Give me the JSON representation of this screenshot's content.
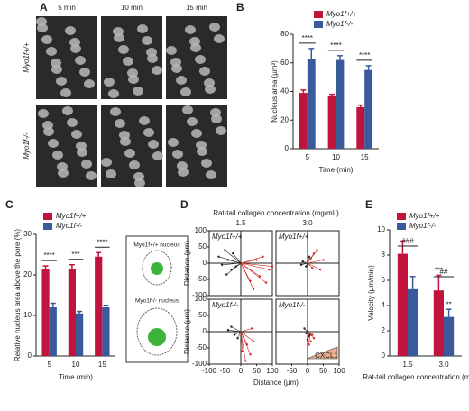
{
  "panel_labels": [
    "A",
    "B",
    "C",
    "D",
    "E"
  ],
  "panel_a": {
    "columns": [
      "5 min",
      "10 min",
      "15 min"
    ],
    "rows": [
      "Myo1f+/+",
      "Myo1f-/-"
    ]
  },
  "panel_c_diagram": {
    "labels": [
      "Myo1f+/+ nucleus",
      "Myo1f-/- nucleus"
    ]
  },
  "chart_data": [
    {
      "type": "bar",
      "categories": [
        "5",
        "10",
        "15"
      ],
      "xlabel": "Time (min)",
      "ylabel": "Nucleus area (µm²)",
      "ylim": [
        0,
        80
      ],
      "yticks": [
        0,
        20,
        40,
        60,
        80
      ],
      "series": [
        {
          "name": "Myo1f+/+",
          "color": "#c0143c",
          "values": [
            39,
            37,
            29
          ],
          "errors": [
            2,
            1,
            1.5
          ]
        },
        {
          "name": "Myo1f-/-",
          "color": "#3a5a9c",
          "values": [
            63,
            62,
            55
          ],
          "errors": [
            7,
            3,
            3
          ]
        }
      ],
      "significance": [
        "****",
        "****",
        "****"
      ]
    },
    {
      "type": "bar",
      "categories": [
        "5",
        "10",
        "15"
      ],
      "xlabel": "Time (min)",
      "ylabel": "Relative nucleus area above the pore (%)",
      "ylim": [
        0,
        30
      ],
      "yticks": [
        0,
        10,
        20,
        30
      ],
      "series": [
        {
          "name": "Myo1f+/+",
          "color": "#c0143c",
          "values": [
            21.5,
            21.5,
            24.5
          ],
          "errors": [
            0.7,
            1,
            1
          ]
        },
        {
          "name": "Myo1f-/-",
          "color": "#3a5a9c",
          "values": [
            12,
            10.5,
            12
          ],
          "errors": [
            1,
            0.5,
            0.5
          ]
        }
      ],
      "significance": [
        "****",
        "***",
        "****"
      ]
    },
    {
      "type": "tracks",
      "title": "Rat-tail collagen concentration (mg/mL)",
      "column_labels": [
        "1.5",
        "3.0"
      ],
      "row_labels": [
        "Myo1f+/+",
        "Myo1f-/-"
      ],
      "xlabel": "Distance (µm)",
      "ylabel": "Distance (µm)",
      "xlim": [
        -100,
        100
      ],
      "ylim": [
        -100,
        100
      ],
      "xticks": [
        -100,
        -50,
        0,
        50,
        100
      ],
      "yticks": [
        -100,
        -50,
        0,
        50,
        100
      ],
      "annotation": "CXCL1",
      "panels": [
        {
          "series": [
            {
              "color": "#222222",
              "x": [
                -40,
                -60,
                -25,
                -70,
                -30,
                -50,
                -15,
                -45
              ],
              "y": [
                10,
                -5,
                30,
                20,
                -20,
                40,
                -10,
                -35
              ]
            },
            {
              "color": "#d0281e",
              "x": [
                60,
                80,
                40,
                70,
                90,
                30,
                50,
                100
              ],
              "y": [
                -40,
                -60,
                -80,
                20,
                -20,
                -55,
                10,
                -10
              ]
            }
          ]
        },
        {
          "series": [
            {
              "color": "#222222",
              "x": [
                -15,
                -5,
                10,
                -20,
                5
              ],
              "y": [
                5,
                -10,
                15,
                -5,
                20
              ]
            },
            {
              "color": "#d0281e",
              "x": [
                30,
                40,
                20,
                50,
                15
              ],
              "y": [
                40,
                -20,
                30,
                10,
                -15
              ]
            }
          ]
        },
        {
          "series": [
            {
              "color": "#222222",
              "x": [
                -40,
                -20,
                -30,
                10,
                -10
              ],
              "y": [
                5,
                -10,
                15,
                -5,
                -20
              ]
            },
            {
              "color": "#d0281e",
              "x": [
                20,
                30,
                15,
                40,
                35,
                5
              ],
              "y": [
                -40,
                -70,
                -90,
                -30,
                10,
                -60
              ]
            }
          ]
        },
        {
          "series": [
            {
              "color": "#222222",
              "x": [
                -5,
                5,
                -10,
                8,
                0
              ],
              "y": [
                -5,
                -15,
                10,
                -10,
                -25
              ]
            },
            {
              "color": "#d0281e",
              "x": [
                10,
                20,
                5,
                15
              ],
              "y": [
                -30,
                -20,
                -40,
                -10
              ]
            }
          ]
        }
      ]
    },
    {
      "type": "bar",
      "categories": [
        "1.5",
        "3.0"
      ],
      "xlabel": "Rat-tail collagen concentration (mg/mL)",
      "ylabel": "Velocity (µm/min)",
      "ylim": [
        0,
        10
      ],
      "yticks": [
        0,
        2,
        4,
        6,
        8,
        10
      ],
      "series": [
        {
          "name": "Myo1f+/+",
          "color": "#c0143c",
          "values": [
            8.1,
            5.2
          ],
          "errors": [
            1,
            1.2
          ],
          "significance": [
            null,
            "***"
          ]
        },
        {
          "name": "Myo1f-/-",
          "color": "#3a5a9c",
          "values": [
            5.3,
            3.1
          ],
          "errors": [
            1,
            0.6
          ],
          "significance": [
            null,
            "**"
          ]
        }
      ],
      "group_significance": [
        "###",
        "##"
      ]
    }
  ]
}
